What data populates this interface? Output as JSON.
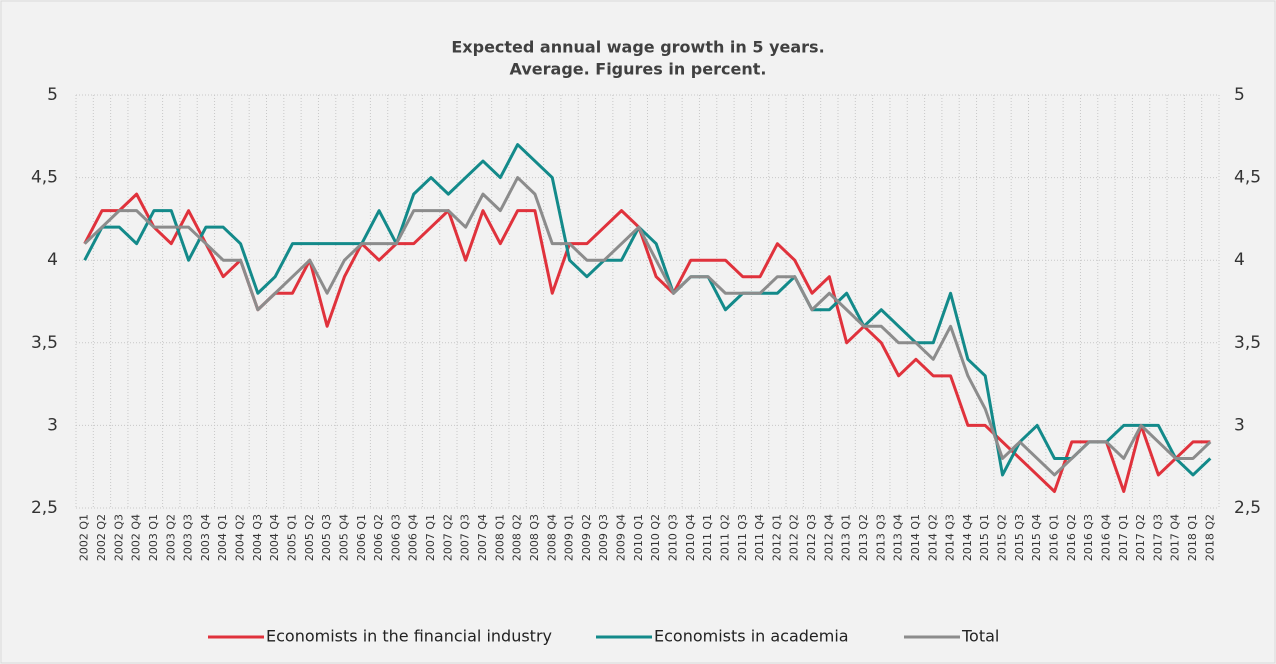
{
  "chart_data": {
    "type": "line",
    "title": [
      "Expected annual wage growth in 5 years.",
      "Average. Figures in percent."
    ],
    "categories": [
      "2002 Q1",
      "2002 Q2",
      "2002 Q3",
      "2002 Q4",
      "2003 Q1",
      "2003 Q2",
      "2003 Q3",
      "2003 Q4",
      "2004 Q1",
      "2004 Q2",
      "2004 Q3",
      "2004 Q4",
      "2005 Q1",
      "2005 Q2",
      "2005 Q3",
      "2005 Q4",
      "2006 Q1",
      "2006 Q2",
      "2006 Q3",
      "2006 Q4",
      "2007 Q1",
      "2007 Q2",
      "2007 Q3",
      "2007 Q4",
      "2008 Q1",
      "2008 Q2",
      "2008 Q3",
      "2008 Q4",
      "2009 Q1",
      "2009 Q2",
      "2009 Q3",
      "2009 Q4",
      "2010 Q1",
      "2010 Q2",
      "2010 Q3",
      "2010 Q4",
      "2011 Q1",
      "2011 Q2",
      "2011 Q3",
      "2011 Q4",
      "2012 Q1",
      "2012 Q2",
      "2012 Q3",
      "2012 Q4",
      "2013 Q1",
      "2013 Q2",
      "2013 Q3",
      "2013 Q4",
      "2014 Q1",
      "2014 Q2",
      "2014 Q3",
      "2014 Q4",
      "2015 Q1",
      "2015 Q2",
      "2015 Q3",
      "2015 Q4",
      "2016 Q1",
      "2016 Q2",
      "2016 Q3",
      "2016 Q4",
      "2017 Q1",
      "2017 Q2",
      "2017 Q3",
      "2017 Q4",
      "2018 Q1",
      "2018 Q2"
    ],
    "series": [
      {
        "name": "Economists in the financial industry",
        "color": "#e0323c",
        "values": [
          4.1,
          4.3,
          4.3,
          4.4,
          4.2,
          4.1,
          4.3,
          4.1,
          3.9,
          4.0,
          3.7,
          3.8,
          3.8,
          4.0,
          3.6,
          3.9,
          4.1,
          4.0,
          4.1,
          4.1,
          4.2,
          4.3,
          4.0,
          4.3,
          4.1,
          4.3,
          4.3,
          3.8,
          4.1,
          4.1,
          4.2,
          4.3,
          4.2,
          3.9,
          3.8,
          4.0,
          4.0,
          4.0,
          3.9,
          3.9,
          4.1,
          4.0,
          3.8,
          3.9,
          3.5,
          3.6,
          3.5,
          3.3,
          3.4,
          3.3,
          3.3,
          3.0,
          3.0,
          2.9,
          2.8,
          2.7,
          2.6,
          2.9,
          2.9,
          2.9,
          2.6,
          3.0,
          2.7,
          2.8,
          2.9,
          2.9
        ]
      },
      {
        "name": "Economists in academia",
        "color": "#138a8a",
        "values": [
          4.0,
          4.2,
          4.2,
          4.1,
          4.3,
          4.3,
          4.0,
          4.2,
          4.2,
          4.1,
          3.8,
          3.9,
          4.1,
          4.1,
          4.1,
          4.1,
          4.1,
          4.3,
          4.1,
          4.4,
          4.5,
          4.4,
          4.5,
          4.6,
          4.5,
          4.7,
          4.6,
          4.5,
          4.0,
          3.9,
          4.0,
          4.0,
          4.2,
          4.1,
          3.8,
          3.9,
          3.9,
          3.7,
          3.8,
          3.8,
          3.8,
          3.9,
          3.7,
          3.7,
          3.8,
          3.6,
          3.7,
          3.6,
          3.5,
          3.5,
          3.8,
          3.4,
          3.3,
          2.7,
          2.9,
          3.0,
          2.8,
          2.8,
          2.9,
          2.9,
          3.0,
          3.0,
          3.0,
          2.8,
          2.7,
          2.8
        ]
      },
      {
        "name": "Total",
        "color": "#8c8c8c",
        "values": [
          4.1,
          4.2,
          4.3,
          4.3,
          4.2,
          4.2,
          4.2,
          4.1,
          4.0,
          4.0,
          3.7,
          3.8,
          3.9,
          4.0,
          3.8,
          4.0,
          4.1,
          4.1,
          4.1,
          4.3,
          4.3,
          4.3,
          4.2,
          4.4,
          4.3,
          4.5,
          4.4,
          4.1,
          4.1,
          4.0,
          4.0,
          4.1,
          4.2,
          4.0,
          3.8,
          3.9,
          3.9,
          3.8,
          3.8,
          3.8,
          3.9,
          3.9,
          3.7,
          3.8,
          3.7,
          3.6,
          3.6,
          3.5,
          3.5,
          3.4,
          3.6,
          3.3,
          3.1,
          2.8,
          2.9,
          2.8,
          2.7,
          2.8,
          2.9,
          2.9,
          2.8,
          3.0,
          2.9,
          2.8,
          2.8,
          2.9
        ]
      }
    ],
    "ylim": [
      2.5,
      5
    ],
    "yticks": [
      {
        "value": 2.5,
        "label": "2,5"
      },
      3,
      {
        "value": 3.5,
        "label": "3,5"
      },
      4,
      {
        "value": 4.5,
        "label": "4,5"
      },
      5
    ],
    "y2lim": [
      2.5,
      5
    ],
    "y2ticks": [
      {
        "value": 2.5,
        "label": "2,5"
      },
      3,
      {
        "value": 3.5,
        "label": "3,5"
      },
      4,
      {
        "value": 4.5,
        "label": "4,5"
      },
      5
    ],
    "grid": true,
    "legend": "bottom"
  }
}
